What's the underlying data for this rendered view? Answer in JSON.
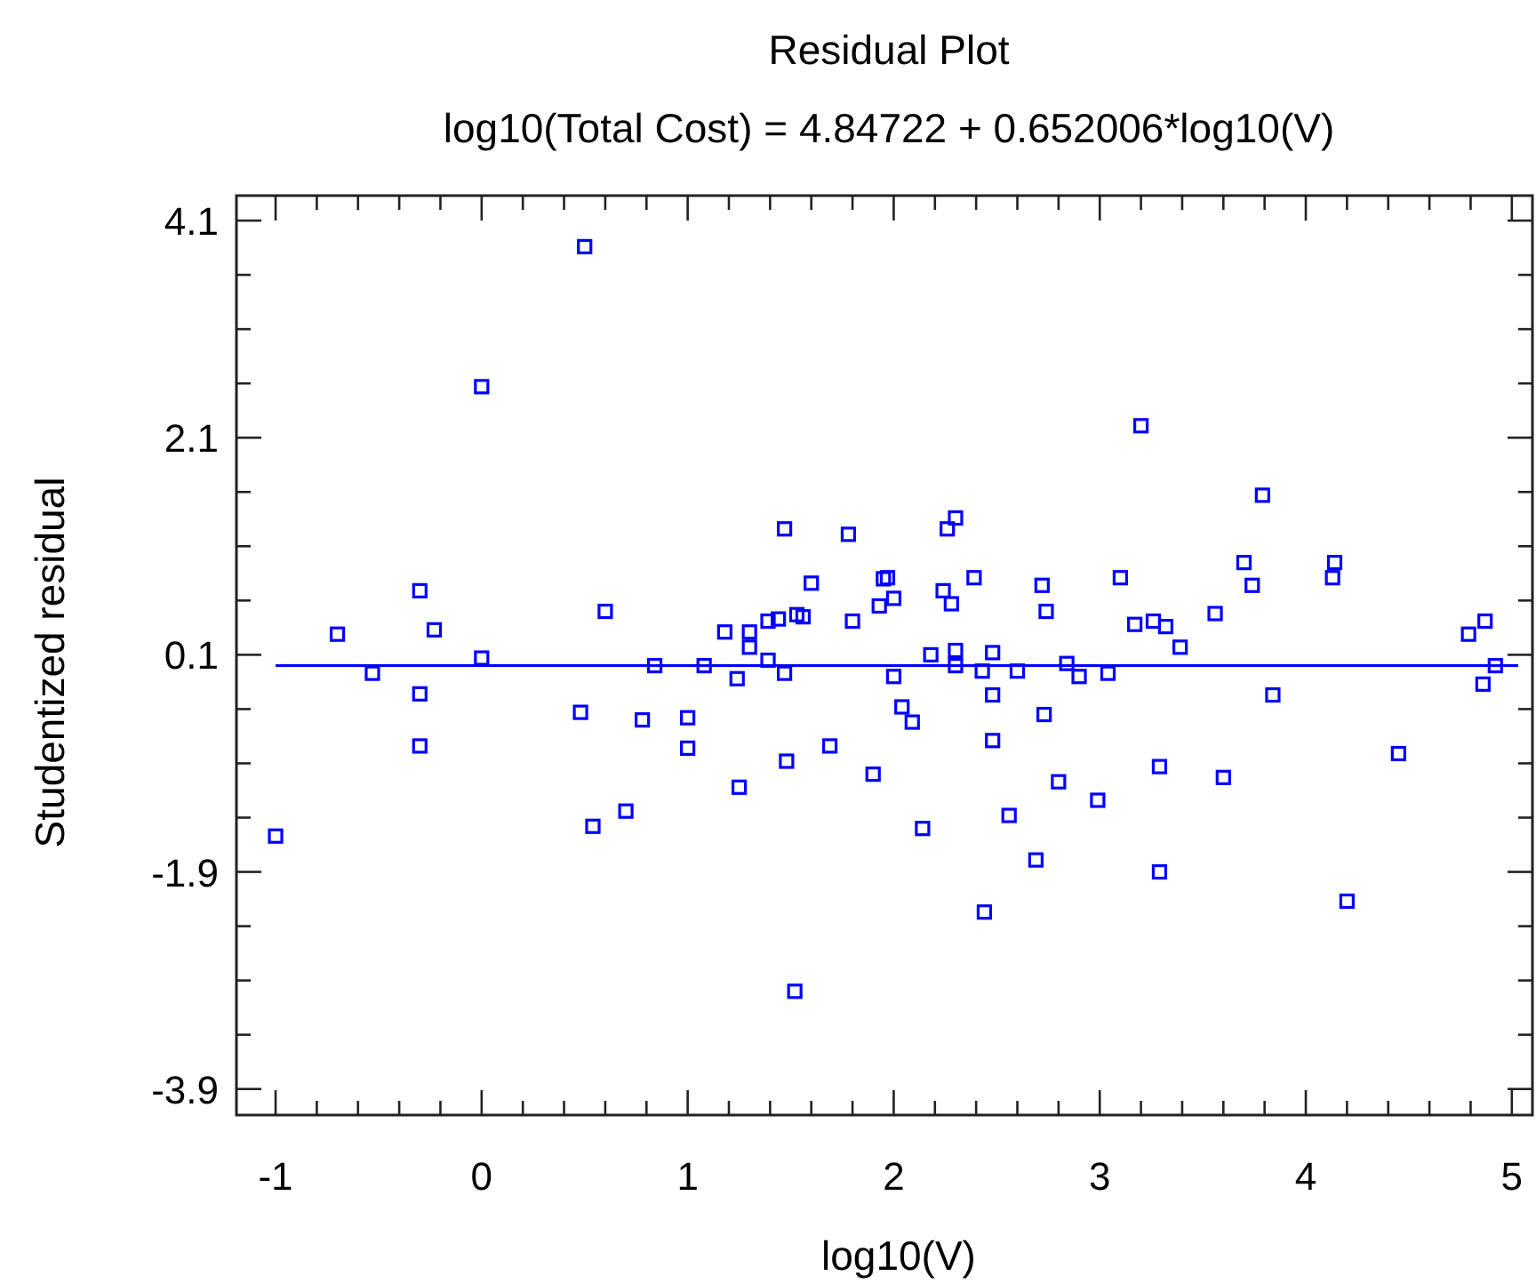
{
  "chart_data": {
    "type": "scatter",
    "title": "Residual Plot",
    "subtitle": "log10(Total Cost) = 4.84722 + 0.652006*log10(V)",
    "xlabel": "log10(V)",
    "ylabel": "Studentized residual",
    "marker": "square",
    "grid": false,
    "xlim": [
      -1.19,
      5.1
    ],
    "ylim": [
      -4.14,
      4.33
    ],
    "xticks": [
      -1,
      {
        "value": -0.8,
        "label": null
      },
      {
        "value": -0.6,
        "label": null
      },
      {
        "value": -0.4,
        "label": null
      },
      {
        "value": -0.2,
        "label": null
      },
      0,
      {
        "value": 0.2,
        "label": null
      },
      {
        "value": 0.4,
        "label": null
      },
      {
        "value": 0.6,
        "label": null
      },
      {
        "value": 0.8,
        "label": null
      },
      1,
      {
        "value": 1.2,
        "label": null
      },
      {
        "value": 1.4,
        "label": null
      },
      {
        "value": 1.6,
        "label": null
      },
      {
        "value": 1.8,
        "label": null
      },
      2,
      {
        "value": 2.2,
        "label": null
      },
      {
        "value": 2.4,
        "label": null
      },
      {
        "value": 2.6,
        "label": null
      },
      {
        "value": 2.8,
        "label": null
      },
      3,
      {
        "value": 3.2,
        "label": null
      },
      {
        "value": 3.4,
        "label": null
      },
      {
        "value": 3.6,
        "label": null
      },
      {
        "value": 3.8,
        "label": null
      },
      4,
      {
        "value": 4.2,
        "label": null
      },
      {
        "value": 4.4,
        "label": null
      },
      {
        "value": 4.6,
        "label": null
      },
      {
        "value": 4.8,
        "label": null
      },
      5
    ],
    "yticks": [
      -3.9,
      {
        "value": -3.4,
        "label": null
      },
      {
        "value": -2.9,
        "label": null
      },
      {
        "value": -2.4,
        "label": null
      },
      -1.9,
      {
        "value": -1.4,
        "label": null
      },
      {
        "value": -0.9,
        "label": null
      },
      {
        "value": -0.4,
        "label": null
      },
      0.1,
      {
        "value": 0.6,
        "label": null
      },
      {
        "value": 1.1,
        "label": null
      },
      {
        "value": 1.6,
        "label": null
      },
      2.1,
      {
        "value": 2.6,
        "label": null
      },
      {
        "value": 3.1,
        "label": null
      },
      {
        "value": 3.6,
        "label": null
      },
      4.1
    ],
    "ref_lines": [
      {
        "axis": "y",
        "value": 0,
        "color": "#0000ff"
      }
    ],
    "series": [
      {
        "color": "#0000ff",
        "x": [
          0.5,
          0.0,
          1.47,
          1.78,
          -0.3,
          0.6,
          1.6,
          1.95,
          1.93,
          -0.7,
          -0.23,
          1.18,
          1.3,
          1.3,
          1.39,
          1.44,
          1.53,
          1.56,
          1.8,
          0.0,
          0.84,
          1.08,
          1.39,
          -0.53,
          1.24,
          1.47,
          -0.3,
          0.48,
          0.78,
          1.0,
          1.0,
          -0.3,
          1.48,
          1.69,
          1.25,
          1.9,
          -1.0,
          0.54,
          0.7,
          1.52,
          3.2,
          3.79,
          2.3,
          2.26,
          1.97,
          2.0,
          2.24,
          2.28,
          2.39,
          2.72,
          2.74,
          3.1,
          3.7,
          3.74,
          4.13,
          4.14,
          3.17,
          3.26,
          3.32,
          3.56,
          3.39,
          4.79,
          4.87,
          2.18,
          2.3,
          2.48,
          2.3,
          2.84,
          2.0,
          2.43,
          2.6,
          2.9,
          3.04,
          4.92,
          4.86,
          3.84,
          2.48,
          2.04,
          2.09,
          2.73,
          2.48,
          3.29,
          3.6,
          4.45,
          2.8,
          2.99,
          2.56,
          2.14,
          2.69,
          3.29,
          2.44,
          4.2
        ],
        "values": [
          3.86,
          2.57,
          1.26,
          1.21,
          0.69,
          0.5,
          0.76,
          0.8,
          0.55,
          0.29,
          0.33,
          0.31,
          0.31,
          0.17,
          0.41,
          0.43,
          0.47,
          0.45,
          0.41,
          0.07,
          0.0,
          0.0,
          0.05,
          -0.07,
          -0.12,
          -0.07,
          -0.26,
          -0.43,
          -0.5,
          -0.48,
          -0.76,
          -0.74,
          -0.88,
          -0.74,
          -1.12,
          -1.0,
          -1.57,
          -1.48,
          -1.34,
          -3.0,
          2.21,
          1.57,
          1.36,
          1.26,
          0.81,
          0.62,
          0.69,
          0.57,
          0.81,
          0.74,
          0.5,
          0.81,
          0.95,
          0.74,
          0.81,
          0.95,
          0.38,
          0.41,
          0.36,
          0.48,
          0.17,
          0.29,
          0.41,
          0.1,
          0.14,
          0.12,
          0.0,
          0.02,
          -0.1,
          -0.05,
          -0.05,
          -0.1,
          -0.07,
          0.0,
          -0.17,
          -0.27,
          -0.27,
          -0.38,
          -0.52,
          -0.45,
          -0.69,
          -0.93,
          -1.03,
          -0.81,
          -1.07,
          -1.24,
          -1.38,
          -1.5,
          -1.79,
          -1.9,
          -2.27,
          -2.17
        ]
      }
    ]
  }
}
